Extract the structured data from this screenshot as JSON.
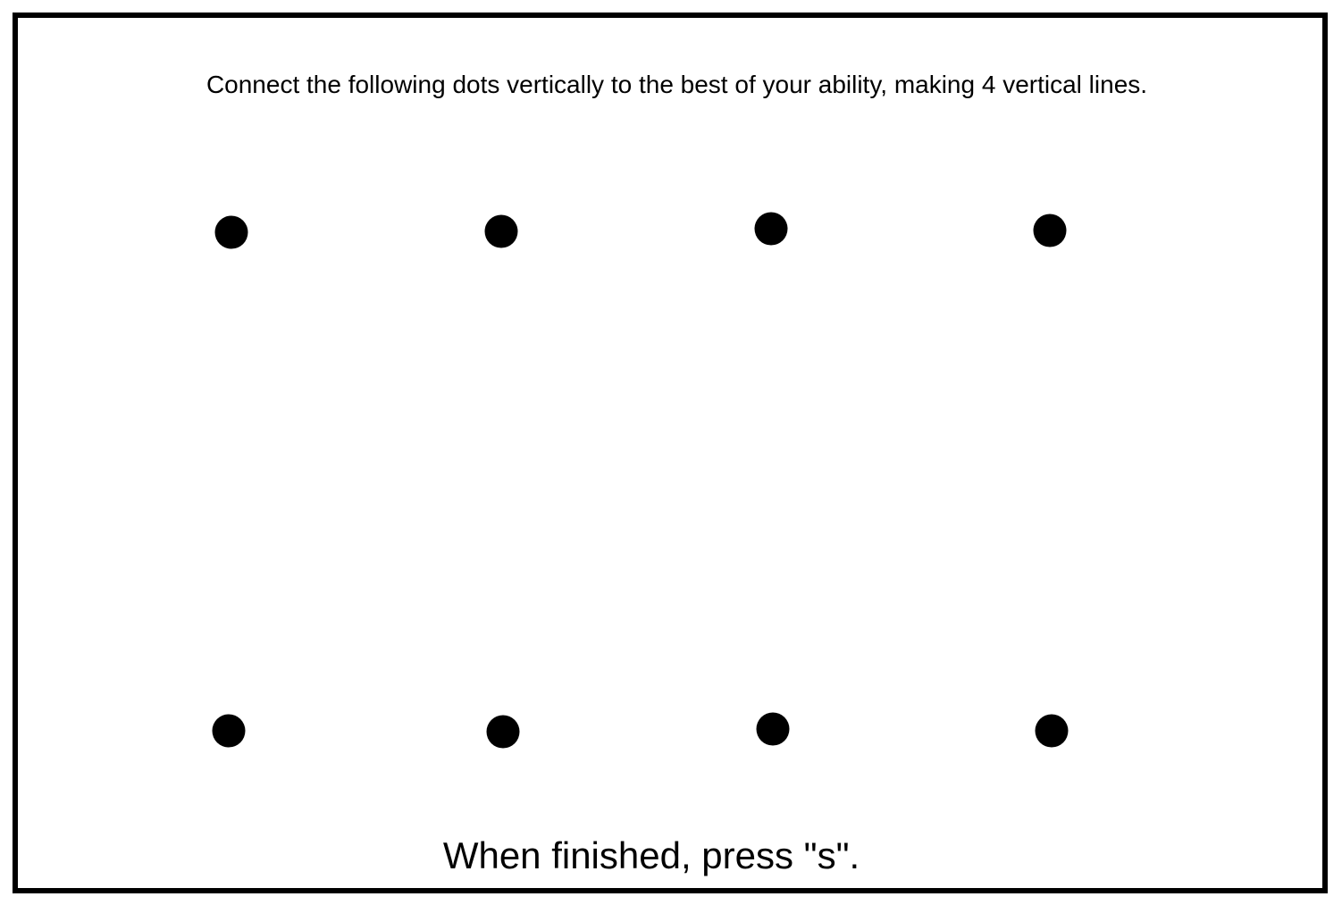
{
  "task": {
    "instruction": "Connect the following dots vertically to the best of your ability, making 4 vertical lines.",
    "finish_hint": "When finished, press \"s\"."
  },
  "dots": {
    "count_per_row": 4,
    "rows": [
      "top",
      "bottom"
    ],
    "color": "#000000"
  },
  "colors": {
    "background": "#ffffff",
    "border": "#000000",
    "text": "#000000"
  }
}
